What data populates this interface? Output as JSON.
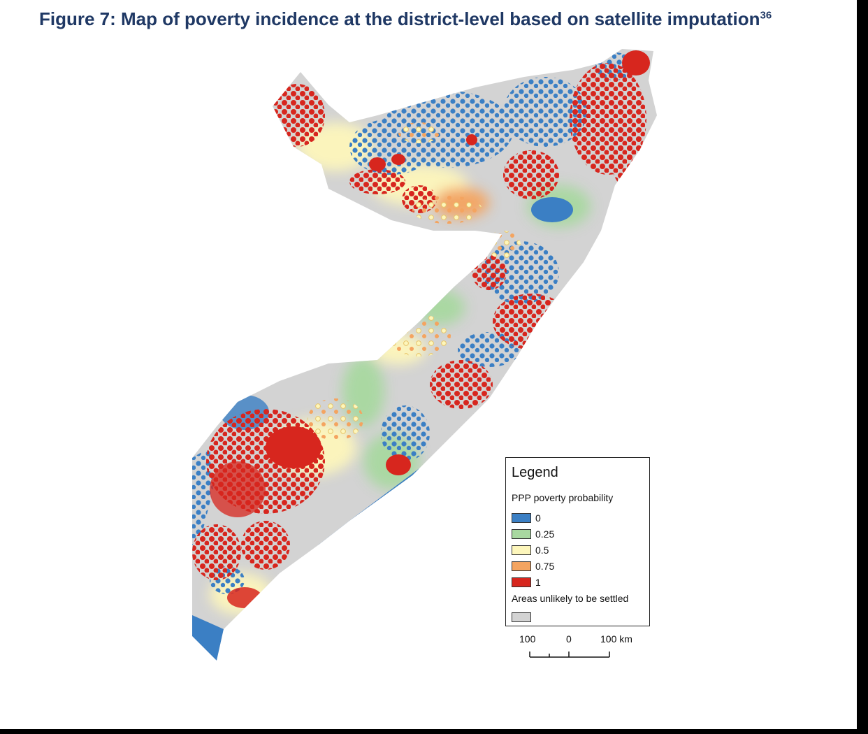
{
  "figure": {
    "title": "Figure 7: Map of poverty incidence at the district-level based on satellite imputation",
    "footnote_ref": "36"
  },
  "legend": {
    "title": "Legend",
    "subtitle": "PPP poverty probability",
    "classes": [
      {
        "label": "0",
        "color": "#3b7fc4"
      },
      {
        "label": "0.25",
        "color": "#a8d8a0"
      },
      {
        "label": "0.5",
        "color": "#fdf6bb"
      },
      {
        "label": "0.75",
        "color": "#f4a460"
      },
      {
        "label": "1",
        "color": "#d7261e"
      }
    ],
    "unsettled": {
      "label": "Areas unlikely to be settled",
      "color": "#d3d3d3"
    }
  },
  "scale_bar": {
    "left": "100",
    "center": "0",
    "right": "100 km"
  },
  "colors": {
    "title": "#1f3864",
    "land": "#d3d3d3",
    "very_poor": "#d7261e",
    "non_poor": "#3b7fc4"
  }
}
